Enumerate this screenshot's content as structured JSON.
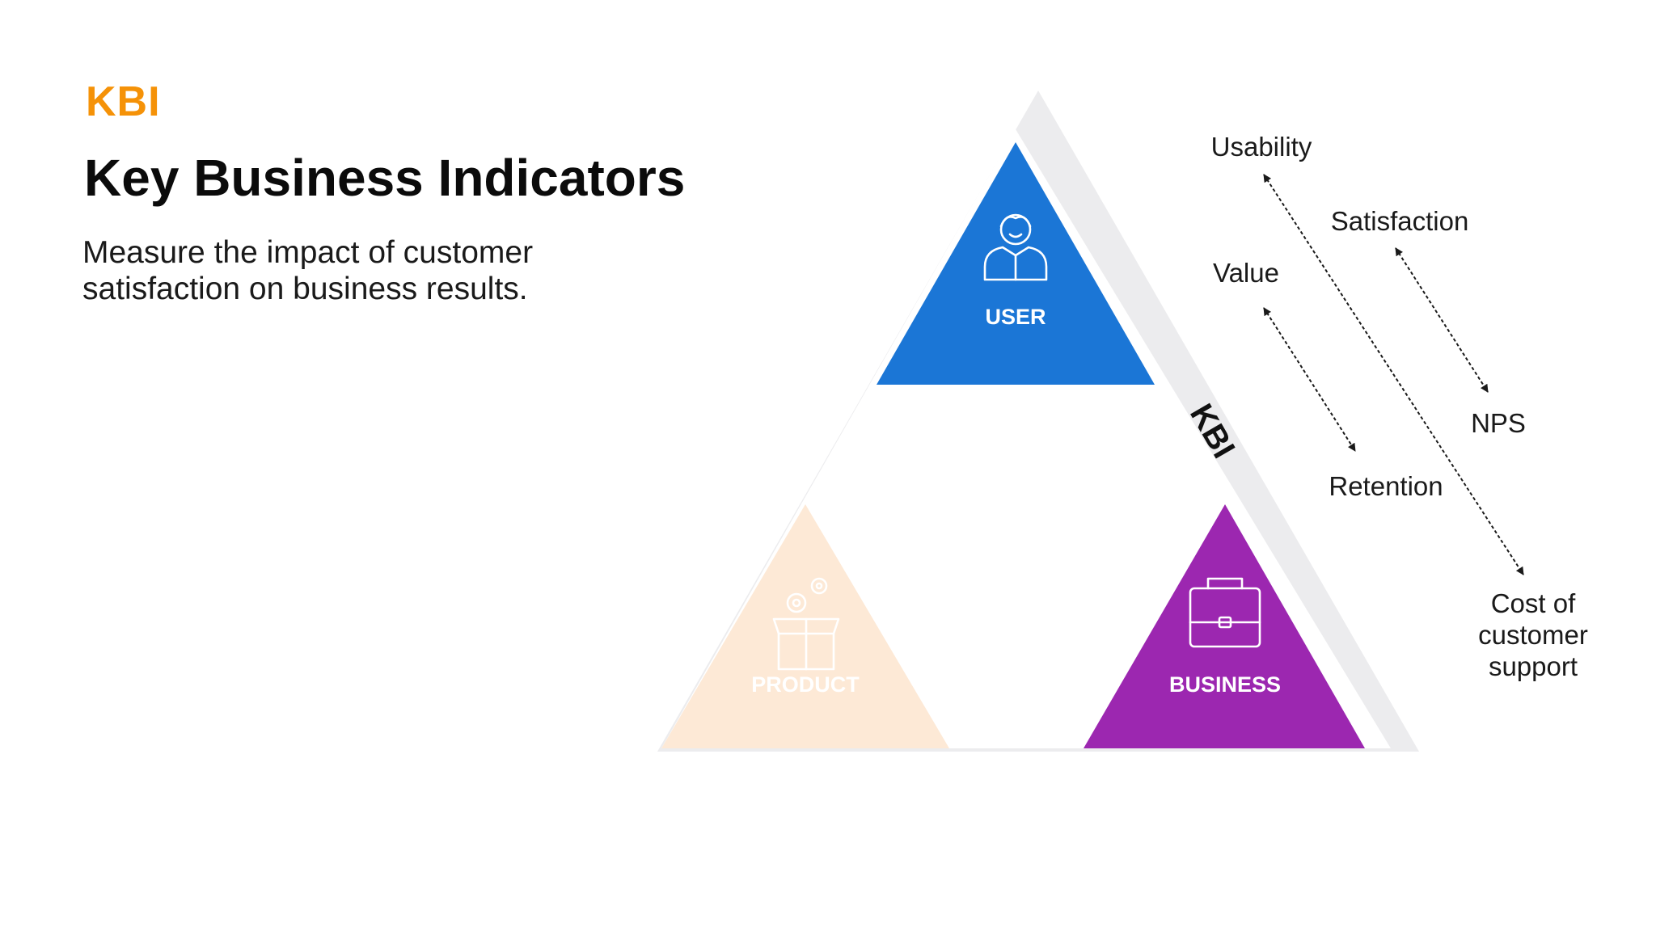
{
  "header": {
    "eyebrow": "KBI",
    "title": "Key Business Indicators",
    "subtitle_lines": [
      "Measure the impact of customer",
      "satisfaction on business results."
    ]
  },
  "pyramid": {
    "band_label": "KBI",
    "segments": {
      "user": {
        "label": "USER",
        "color": "#1b76d6",
        "icon": "user-icon"
      },
      "product": {
        "label": "PRODUCT",
        "color": "#fde9d6",
        "icon": "box-gears-icon"
      },
      "business": {
        "label": "BUSINESS",
        "color": "#9c27b0",
        "icon": "briefcase-icon"
      }
    }
  },
  "metrics": {
    "usability": "Usability",
    "satisfaction": "Satisfaction",
    "value": "Value",
    "nps": "NPS",
    "retention": "Retention",
    "cost_lines": [
      "Cost of",
      "customer",
      "support"
    ]
  },
  "colors": {
    "accent": "#f59208",
    "band": "#ececee",
    "connector": "#1a1a1a"
  }
}
